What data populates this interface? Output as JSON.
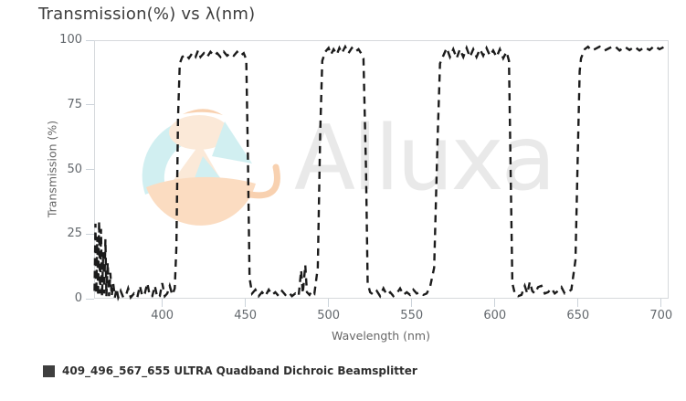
{
  "watermark": {
    "text": "Alluxa"
  },
  "legend": {
    "label": "409_496_567_655 ULTRA Quadband Dichroic Beamsplitter"
  },
  "colors": {
    "title": "#3d3d3d",
    "tick_label": "#63686d",
    "axis_title": "#666666",
    "axis_line": "#ccd3da",
    "plot_border": "#d6d9dc",
    "curve": "#1b1b1b",
    "legend_swatch": "#3f3f3f",
    "legend_text": "#303030",
    "watermark_text": "#e9e9e9",
    "logo_teal": "#cdeef0",
    "logo_peach_light": "#fbe7d4",
    "logo_peach": "#fbd9bb",
    "logo_orange": "#f8cda8"
  },
  "chart_data": {
    "type": "line",
    "title": "Transmission(%) vs λ(nm)",
    "xlabel": "Wavelength (nm)",
    "ylabel": "Transmission (%)",
    "xlim": [
      359,
      704.5
    ],
    "ylim": [
      0,
      100
    ],
    "x_ticks": [
      400,
      450,
      500,
      550,
      600,
      650,
      700
    ],
    "y_ticks": [
      0,
      25,
      50,
      75,
      100
    ],
    "grid": false,
    "legend_position": "bottom-left",
    "line_style": "dashed",
    "dash_pattern": [
      8,
      6
    ],
    "series": [
      {
        "name": "409_496_567_655 ULTRA Quadband Dichroic Beamsplitter",
        "color": "#1b1b1b",
        "points": [
          [
            359.3,
            3
          ],
          [
            359.8,
            29
          ],
          [
            360.3,
            2
          ],
          [
            360.9,
            24
          ],
          [
            361.4,
            1
          ],
          [
            362,
            30
          ],
          [
            362.6,
            2
          ],
          [
            363.2,
            27
          ],
          [
            363.8,
            1
          ],
          [
            364.5,
            18
          ],
          [
            365.1,
            2
          ],
          [
            365.8,
            23
          ],
          [
            366.4,
            1
          ],
          [
            367.2,
            14
          ],
          [
            368,
            1
          ],
          [
            368.8,
            10
          ],
          [
            369.6,
            1
          ],
          [
            370.5,
            6
          ],
          [
            371.5,
            0.5
          ],
          [
            372.5,
            4
          ],
          [
            373.5,
            0.5
          ],
          [
            375,
            3
          ],
          [
            376.5,
            0.5
          ],
          [
            378,
            1
          ],
          [
            379.5,
            4
          ],
          [
            381,
            0.5
          ],
          [
            383,
            2
          ],
          [
            385,
            0.5
          ],
          [
            386.5,
            5
          ],
          [
            388,
            1
          ],
          [
            389.5,
            2
          ],
          [
            391,
            6
          ],
          [
            392.5,
            1
          ],
          [
            394,
            1
          ],
          [
            395.5,
            5
          ],
          [
            397,
            0.5
          ],
          [
            398.5,
            1
          ],
          [
            400,
            6
          ],
          [
            401.5,
            1
          ],
          [
            403,
            2
          ],
          [
            404.5,
            5
          ],
          [
            406,
            1.5
          ],
          [
            407.5,
            4
          ],
          [
            408.5,
            20
          ],
          [
            409.5,
            70
          ],
          [
            410.5,
            91
          ],
          [
            412,
            93.5
          ],
          [
            414,
            94.5
          ],
          [
            416,
            93
          ],
          [
            418,
            95
          ],
          [
            420,
            93.5
          ],
          [
            421.5,
            96
          ],
          [
            423,
            93.5
          ],
          [
            425,
            95
          ],
          [
            427,
            93.5
          ],
          [
            429,
            95.5
          ],
          [
            431,
            94
          ],
          [
            433,
            95
          ],
          [
            435,
            93.5
          ],
          [
            437,
            95.5
          ],
          [
            439,
            94
          ],
          [
            441,
            95
          ],
          [
            443,
            94
          ],
          [
            445,
            95.5
          ],
          [
            447,
            94
          ],
          [
            449,
            95
          ],
          [
            450.5,
            92.5
          ],
          [
            451.5,
            55
          ],
          [
            452.5,
            8
          ],
          [
            454,
            2
          ],
          [
            456,
            3.5
          ],
          [
            458,
            1
          ],
          [
            460,
            2.5
          ],
          [
            462,
            1
          ],
          [
            464,
            3.5
          ],
          [
            466,
            1.5
          ],
          [
            468,
            2.5
          ],
          [
            470,
            1
          ],
          [
            472,
            3
          ],
          [
            474,
            1.5
          ],
          [
            476,
            2.5
          ],
          [
            478,
            1
          ],
          [
            480,
            2
          ],
          [
            482,
            1
          ],
          [
            483.5,
            11
          ],
          [
            484.5,
            2
          ],
          [
            486,
            13
          ],
          [
            487,
            2.5
          ],
          [
            488.5,
            1.5
          ],
          [
            490,
            3
          ],
          [
            491.5,
            2
          ],
          [
            493.5,
            12
          ],
          [
            495,
            65
          ],
          [
            496.2,
            92
          ],
          [
            498,
            95.5
          ],
          [
            500,
            97
          ],
          [
            501.5,
            94.5
          ],
          [
            503,
            96.5
          ],
          [
            505,
            94.5
          ],
          [
            506.5,
            97
          ],
          [
            508,
            95
          ],
          [
            510,
            97.5
          ],
          [
            512,
            95
          ],
          [
            514,
            97
          ],
          [
            516,
            95.5
          ],
          [
            518,
            96.5
          ],
          [
            519.5,
            95
          ],
          [
            521,
            93
          ],
          [
            522.5,
            50
          ],
          [
            523.5,
            6
          ],
          [
            525,
            2.5
          ],
          [
            527,
            1.5
          ],
          [
            529,
            3
          ],
          [
            531,
            1
          ],
          [
            533,
            4
          ],
          [
            535,
            1.5
          ],
          [
            537,
            2.5
          ],
          [
            539,
            1
          ],
          [
            541,
            2
          ],
          [
            543,
            4
          ],
          [
            545,
            1.5
          ],
          [
            547,
            2.5
          ],
          [
            549,
            1.5
          ],
          [
            551,
            3.5
          ],
          [
            553,
            2
          ],
          [
            555,
            2.5
          ],
          [
            557,
            1.5
          ],
          [
            559,
            2
          ],
          [
            561,
            4.5
          ],
          [
            563.5,
            12
          ],
          [
            565.5,
            60
          ],
          [
            567,
            91
          ],
          [
            569,
            94
          ],
          [
            571,
            97
          ],
          [
            573,
            93.5
          ],
          [
            575,
            96.5
          ],
          [
            577,
            93
          ],
          [
            579,
            96.5
          ],
          [
            581,
            93.5
          ],
          [
            583,
            97
          ],
          [
            585,
            93.5
          ],
          [
            587,
            96.5
          ],
          [
            589,
            93.5
          ],
          [
            591,
            96.5
          ],
          [
            593,
            94
          ],
          [
            595,
            97
          ],
          [
            597,
            94
          ],
          [
            599,
            96
          ],
          [
            601,
            93.5
          ],
          [
            603,
            96.5
          ],
          [
            605,
            93
          ],
          [
            607,
            95.5
          ],
          [
            608.5,
            92
          ],
          [
            609.5,
            50
          ],
          [
            610.5,
            6
          ],
          [
            612,
            2
          ],
          [
            614,
            1
          ],
          [
            616,
            1.5
          ],
          [
            618,
            5
          ],
          [
            619.5,
            2
          ],
          [
            621,
            6.5
          ],
          [
            622.5,
            3
          ],
          [
            624,
            2
          ],
          [
            626,
            4.5
          ],
          [
            628,
            5
          ],
          [
            630,
            2
          ],
          [
            632,
            2.5
          ],
          [
            634,
            4
          ],
          [
            636,
            2
          ],
          [
            638,
            3
          ],
          [
            640,
            4.5
          ],
          [
            642,
            2
          ],
          [
            644,
            2.5
          ],
          [
            646,
            3.5
          ],
          [
            648.5,
            15
          ],
          [
            650,
            60
          ],
          [
            651,
            88
          ],
          [
            651.8,
            93
          ],
          [
            654,
            96.5
          ],
          [
            656,
            97.5
          ],
          [
            658,
            96
          ],
          [
            660,
            96.5
          ],
          [
            663,
            97.5
          ],
          [
            666,
            96
          ],
          [
            669,
            97
          ],
          [
            672,
            97.8
          ],
          [
            675,
            96
          ],
          [
            678,
            97.5
          ],
          [
            681,
            96.2
          ],
          [
            684,
            97.5
          ],
          [
            687,
            96
          ],
          [
            690,
            97.3
          ],
          [
            693,
            96.2
          ],
          [
            696,
            97.8
          ],
          [
            699,
            96.5
          ],
          [
            702,
            97.5
          ],
          [
            704,
            97
          ]
        ]
      }
    ]
  }
}
